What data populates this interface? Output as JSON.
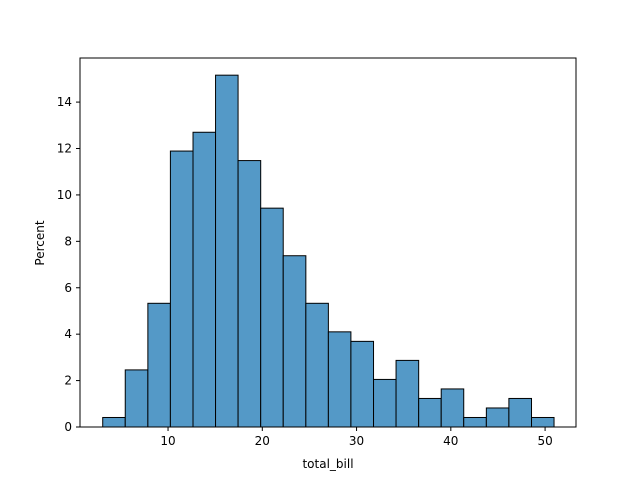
{
  "chart_data": {
    "type": "bar",
    "xlabel": "total_bill",
    "ylabel": "Percent",
    "xlim": [
      0.66,
      53.28
    ],
    "ylim": [
      0,
      15.9
    ],
    "xticks": [
      10,
      20,
      30,
      40,
      50
    ],
    "yticks": [
      0,
      2,
      4,
      6,
      8,
      10,
      12,
      14
    ],
    "grid": false,
    "bar_color": "#5499c7",
    "edge_color": "#000000",
    "bins": [
      {
        "x0": 3.07,
        "x1": 5.46,
        "value": 0.41
      },
      {
        "x0": 5.46,
        "x1": 7.86,
        "value": 2.46
      },
      {
        "x0": 7.86,
        "x1": 10.25,
        "value": 5.33
      },
      {
        "x0": 10.25,
        "x1": 12.65,
        "value": 11.89
      },
      {
        "x0": 12.65,
        "x1": 15.04,
        "value": 12.7
      },
      {
        "x0": 15.04,
        "x1": 17.43,
        "value": 15.16
      },
      {
        "x0": 17.43,
        "x1": 19.83,
        "value": 11.48
      },
      {
        "x0": 19.83,
        "x1": 22.22,
        "value": 9.43
      },
      {
        "x0": 22.22,
        "x1": 24.62,
        "value": 7.38
      },
      {
        "x0": 24.62,
        "x1": 27.01,
        "value": 5.33
      },
      {
        "x0": 27.01,
        "x1": 29.4,
        "value": 4.1
      },
      {
        "x0": 29.4,
        "x1": 31.8,
        "value": 3.69
      },
      {
        "x0": 31.8,
        "x1": 34.19,
        "value": 2.05
      },
      {
        "x0": 34.19,
        "x1": 36.59,
        "value": 2.87
      },
      {
        "x0": 36.59,
        "x1": 38.98,
        "value": 1.23
      },
      {
        "x0": 38.98,
        "x1": 41.37,
        "value": 1.64
      },
      {
        "x0": 41.37,
        "x1": 43.77,
        "value": 0.41
      },
      {
        "x0": 43.77,
        "x1": 46.16,
        "value": 0.82
      },
      {
        "x0": 46.16,
        "x1": 48.56,
        "value": 1.23
      },
      {
        "x0": 48.56,
        "x1": 50.95,
        "value": 0.41
      }
    ]
  }
}
